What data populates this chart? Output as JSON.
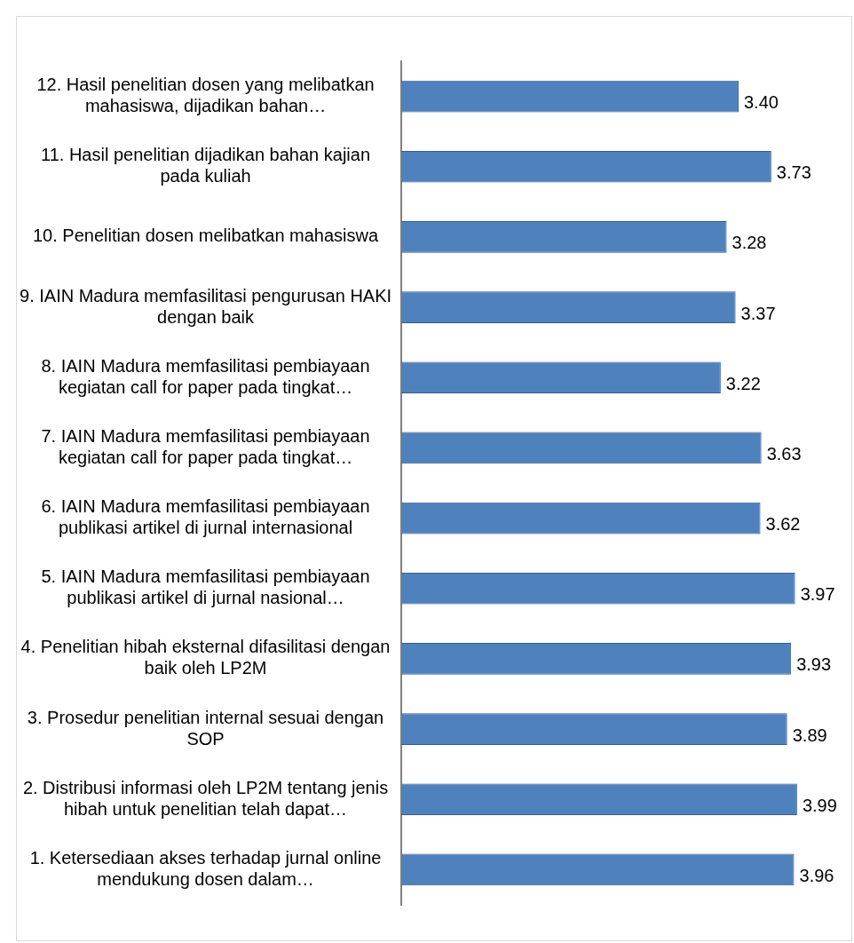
{
  "chart_data": {
    "type": "bar",
    "orientation": "horizontal",
    "categories": [
      "12. Hasil penelitian dosen yang melibatkan mahasiswa, dijadikan bahan…",
      "11. Hasil penelitian dijadikan bahan kajian pada kuliah",
      "10. Penelitian dosen melibatkan mahasiswa",
      "9. IAIN Madura memfasilitasi pengurusan HAKI dengan baik",
      "8. IAIN Madura memfasilitasi pembiayaan kegiatan call for paper pada tingkat…",
      "7. IAIN Madura memfasilitasi pembiayaan kegiatan call for paper pada tingkat…",
      "6. IAIN Madura memfasilitasi pembiayaan publikasi artikel di jurnal internasional",
      "5. IAIN Madura memfasilitasi pembiayaan publikasi artikel di jurnal nasional…",
      "4. Penelitian hibah eksternal difasilitasi dengan baik oleh LP2M",
      "3. Prosedur penelitian internal sesuai dengan SOP",
      "2. Distribusi informasi oleh LP2M tentang jenis hibah untuk penelitian telah dapat…",
      "1. Ketersediaan akses terhadap jurnal online mendukung dosen dalam…"
    ],
    "values": [
      3.4,
      3.73,
      3.28,
      3.37,
      3.22,
      3.63,
      3.62,
      3.97,
      3.93,
      3.89,
      3.99,
      3.96
    ],
    "value_labels": [
      "3.40",
      "3.73",
      "3.28",
      "3.37",
      "3.22",
      "3.63",
      "3.62",
      "3.97",
      "3.93",
      "3.89",
      "3.99",
      "3.96"
    ],
    "color": "#4f81bd",
    "tick_labels": "y"
  }
}
